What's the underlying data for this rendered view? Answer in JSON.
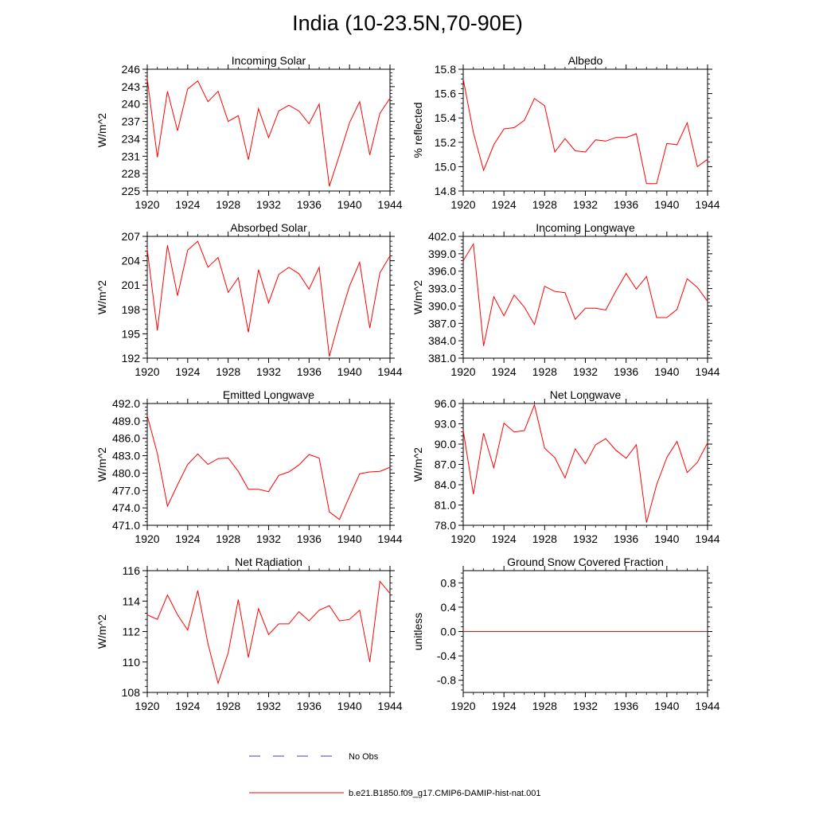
{
  "title": "India (10-23.5N,70-90E)",
  "colors": {
    "model": "#ff0000",
    "obs": "#3b3bd6"
  },
  "legend": [
    {
      "label": "No Obs",
      "style": "dashed",
      "color": "#3b3bd6"
    },
    {
      "label": "b.e21.B1850.f09_g17.CMIP6-DAMIP-hist-nat.001",
      "style": "solid",
      "color": "#ff0000"
    }
  ],
  "chart_data": [
    {
      "type": "line",
      "title": "Incoming Solar",
      "ylabel": "W/m^2",
      "xlim": [
        1920,
        1944
      ],
      "ylim": [
        225,
        246
      ],
      "yticks": [
        "225",
        "228",
        "231",
        "234",
        "237",
        "240",
        "243",
        "246"
      ],
      "xticks": [
        "1920",
        "1924",
        "1928",
        "1932",
        "1936",
        "1940",
        "1944"
      ],
      "x": [
        1920,
        1921,
        1922,
        1923,
        1924,
        1925,
        1926,
        1927,
        1928,
        1929,
        1930,
        1931,
        1932,
        1933,
        1934,
        1935,
        1936,
        1937,
        1938,
        1939,
        1940,
        1941,
        1942,
        1943,
        1944
      ],
      "series": [
        {
          "values": [
            244.4,
            230.8,
            242.2,
            235.4,
            242.6,
            244.0,
            240.4,
            242.2,
            237.0,
            238.0,
            230.4,
            239.2,
            234.2,
            238.8,
            239.8,
            238.8,
            236.6,
            240.0,
            225.8,
            231.2,
            236.8,
            240.4,
            231.2,
            238.4,
            241.0
          ]
        }
      ]
    },
    {
      "type": "line",
      "title": "Albedo",
      "ylabel": "% reflected",
      "xlim": [
        1920,
        1944
      ],
      "ylim": [
        14.8,
        15.8
      ],
      "yticks": [
        "14.8",
        "15.0",
        "15.2",
        "15.4",
        "15.6",
        "15.8"
      ],
      "xticks": [
        "1920",
        "1924",
        "1928",
        "1932",
        "1936",
        "1940",
        "1944"
      ],
      "x": [
        1920,
        1921,
        1922,
        1923,
        1924,
        1925,
        1926,
        1927,
        1928,
        1929,
        1930,
        1931,
        1932,
        1933,
        1934,
        1935,
        1936,
        1937,
        1938,
        1939,
        1940,
        1941,
        1942,
        1943,
        1944
      ],
      "series": [
        {
          "values": [
            15.72,
            15.28,
            14.97,
            15.18,
            15.31,
            15.32,
            15.38,
            15.56,
            15.5,
            15.12,
            15.23,
            15.13,
            15.12,
            15.22,
            15.21,
            15.24,
            15.24,
            15.27,
            14.86,
            14.86,
            15.19,
            15.18,
            15.36,
            15.0,
            15.06
          ]
        }
      ]
    },
    {
      "type": "line",
      "title": "Absorbed Solar",
      "ylabel": "W/m^2",
      "xlim": [
        1920,
        1944
      ],
      "ylim": [
        192,
        207
      ],
      "yticks": [
        "192",
        "195",
        "198",
        "201",
        "204",
        "207"
      ],
      "xticks": [
        "1920",
        "1924",
        "1928",
        "1932",
        "1936",
        "1940",
        "1944"
      ],
      "x": [
        1920,
        1921,
        1922,
        1923,
        1924,
        1925,
        1926,
        1927,
        1928,
        1929,
        1930,
        1931,
        1932,
        1933,
        1934,
        1935,
        1936,
        1937,
        1938,
        1939,
        1940,
        1941,
        1942,
        1943,
        1944
      ],
      "series": [
        {
          "values": [
            205.4,
            195.4,
            205.9,
            199.7,
            205.3,
            206.4,
            203.2,
            204.4,
            200.1,
            201.9,
            195.2,
            202.9,
            198.8,
            202.3,
            203.2,
            202.4,
            200.5,
            203.2,
            192.2,
            196.8,
            200.9,
            203.8,
            195.7,
            202.5,
            204.6
          ]
        }
      ]
    },
    {
      "type": "line",
      "title": "Incoming Longwave",
      "ylabel": "W/m^2",
      "xlim": [
        1920,
        1944
      ],
      "ylim": [
        381,
        402
      ],
      "yticks": [
        "381.0",
        "384.0",
        "387.0",
        "390.0",
        "393.0",
        "396.0",
        "399.0",
        "402.0"
      ],
      "xticks": [
        "1920",
        "1924",
        "1928",
        "1932",
        "1936",
        "1940",
        "1944"
      ],
      "x": [
        1920,
        1921,
        1922,
        1923,
        1924,
        1925,
        1926,
        1927,
        1928,
        1929,
        1930,
        1931,
        1932,
        1933,
        1934,
        1935,
        1936,
        1937,
        1938,
        1939,
        1940,
        1941,
        1942,
        1943,
        1944
      ],
      "series": [
        {
          "values": [
            397.8,
            400.7,
            383.1,
            391.6,
            388.3,
            391.9,
            389.8,
            386.8,
            393.4,
            392.5,
            392.3,
            387.7,
            389.6,
            389.6,
            389.3,
            392.6,
            395.6,
            392.9,
            395.1,
            388.0,
            388.0,
            389.4,
            394.7,
            393.2,
            390.8
          ]
        }
      ]
    },
    {
      "type": "line",
      "title": "Emitted Longwave",
      "ylabel": "W/m^2",
      "xlim": [
        1920,
        1944
      ],
      "ylim": [
        471,
        492
      ],
      "yticks": [
        "471.0",
        "474.0",
        "477.0",
        "480.0",
        "483.0",
        "486.0",
        "489.0",
        "492.0"
      ],
      "xticks": [
        "1920",
        "1924",
        "1928",
        "1932",
        "1936",
        "1940",
        "1944"
      ],
      "x": [
        1920,
        1921,
        1922,
        1923,
        1924,
        1925,
        1926,
        1927,
        1928,
        1929,
        1930,
        1931,
        1932,
        1933,
        1934,
        1935,
        1936,
        1937,
        1938,
        1939,
        1940,
        1941,
        1942,
        1943,
        1944
      ],
      "series": [
        {
          "values": [
            489.9,
            483.4,
            474.3,
            478.0,
            481.5,
            483.3,
            481.5,
            482.5,
            482.6,
            480.3,
            477.2,
            477.2,
            476.8,
            479.6,
            480.2,
            481.4,
            483.2,
            482.6,
            473.3,
            472.0,
            476.0,
            479.9,
            480.2,
            480.3,
            481.0
          ]
        }
      ]
    },
    {
      "type": "line",
      "title": "Net Longwave",
      "ylabel": "W/m^2",
      "xlim": [
        1920,
        1944
      ],
      "ylim": [
        78,
        96
      ],
      "yticks": [
        "78.0",
        "81.0",
        "84.0",
        "87.0",
        "90.0",
        "93.0",
        "96.0"
      ],
      "xticks": [
        "1920",
        "1924",
        "1928",
        "1932",
        "1936",
        "1940",
        "1944"
      ],
      "x": [
        1920,
        1921,
        1922,
        1923,
        1924,
        1925,
        1926,
        1927,
        1928,
        1929,
        1930,
        1931,
        1932,
        1933,
        1934,
        1935,
        1936,
        1937,
        1938,
        1939,
        1940,
        1941,
        1942,
        1943,
        1944
      ],
      "series": [
        {
          "values": [
            92.0,
            82.6,
            91.6,
            86.5,
            93.1,
            91.8,
            92.0,
            95.8,
            89.4,
            88.0,
            85.0,
            89.3,
            87.1,
            89.9,
            90.8,
            89.1,
            87.9,
            89.9,
            78.4,
            84.0,
            88.0,
            90.4,
            85.8,
            87.3,
            90.2
          ]
        }
      ]
    },
    {
      "type": "line",
      "title": "Net Radiation",
      "ylabel": "W/m^2",
      "xlim": [
        1920,
        1944
      ],
      "ylim": [
        108,
        116
      ],
      "yticks": [
        "108",
        "110",
        "112",
        "114",
        "116"
      ],
      "xticks": [
        "1920",
        "1924",
        "1928",
        "1932",
        "1936",
        "1940",
        "1944"
      ],
      "x": [
        1920,
        1921,
        1922,
        1923,
        1924,
        1925,
        1926,
        1927,
        1928,
        1929,
        1930,
        1931,
        1932,
        1933,
        1934,
        1935,
        1936,
        1937,
        1938,
        1939,
        1940,
        1941,
        1942,
        1943,
        1944
      ],
      "series": [
        {
          "values": [
            113.1,
            112.8,
            114.4,
            113.1,
            112.1,
            114.7,
            111.2,
            108.6,
            110.6,
            114.1,
            110.3,
            113.5,
            111.8,
            112.5,
            112.5,
            113.3,
            112.7,
            113.4,
            113.7,
            112.7,
            112.8,
            113.4,
            110.0,
            115.3,
            114.5
          ]
        }
      ]
    },
    {
      "type": "line",
      "title": "Ground Snow Covered Fraction",
      "ylabel": "unitless",
      "xlim": [
        1920,
        1944
      ],
      "ylim": [
        -1.0,
        1.0
      ],
      "yticks": [
        "-0.8",
        "-0.4",
        "0.0",
        "0.4",
        "0.8"
      ],
      "ytick_values": [
        -0.8,
        -0.4,
        0.0,
        0.4,
        0.8
      ],
      "xticks": [
        "1920",
        "1924",
        "1928",
        "1932",
        "1936",
        "1940",
        "1944"
      ],
      "x": [
        1920,
        1944
      ],
      "series": [
        {
          "values": [
            0.0,
            0.0
          ]
        }
      ]
    }
  ]
}
